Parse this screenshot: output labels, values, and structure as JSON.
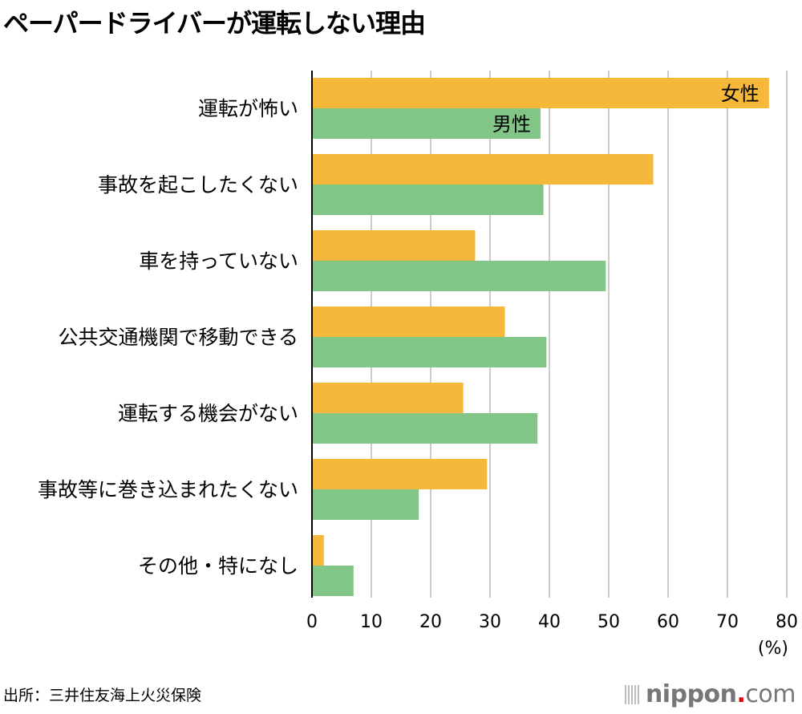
{
  "chart_data": {
    "type": "bar",
    "orientation": "horizontal",
    "title": "ペーパードライバーが運転しない理由",
    "categories": [
      "運転が怖い",
      "事故を起こしたくない",
      "車を持っていない",
      "公共交通機関で移動できる",
      "運転する機会がない",
      "事故等に巻き込まれたくない",
      "その他・特になし"
    ],
    "series": [
      {
        "name": "女性",
        "color": "#f5b83b",
        "values": [
          77.0,
          57.5,
          27.5,
          32.5,
          25.5,
          29.5,
          2.0
        ]
      },
      {
        "name": "男性",
        "color": "#81c587",
        "values": [
          38.5,
          39.0,
          49.5,
          39.5,
          38.0,
          18.0,
          7.0
        ]
      }
    ],
    "xlim": [
      0,
      80
    ],
    "xticks": [
      "0",
      "10",
      "20",
      "30",
      "40",
      "50",
      "60",
      "70",
      "80"
    ],
    "xunit": "(%)",
    "grid": true,
    "legend": "inline labels on first bars"
  },
  "source": "出所：三井住友海上火災保険",
  "logo": {
    "name": "nippon",
    "dot": ".",
    "suffix": "com"
  }
}
